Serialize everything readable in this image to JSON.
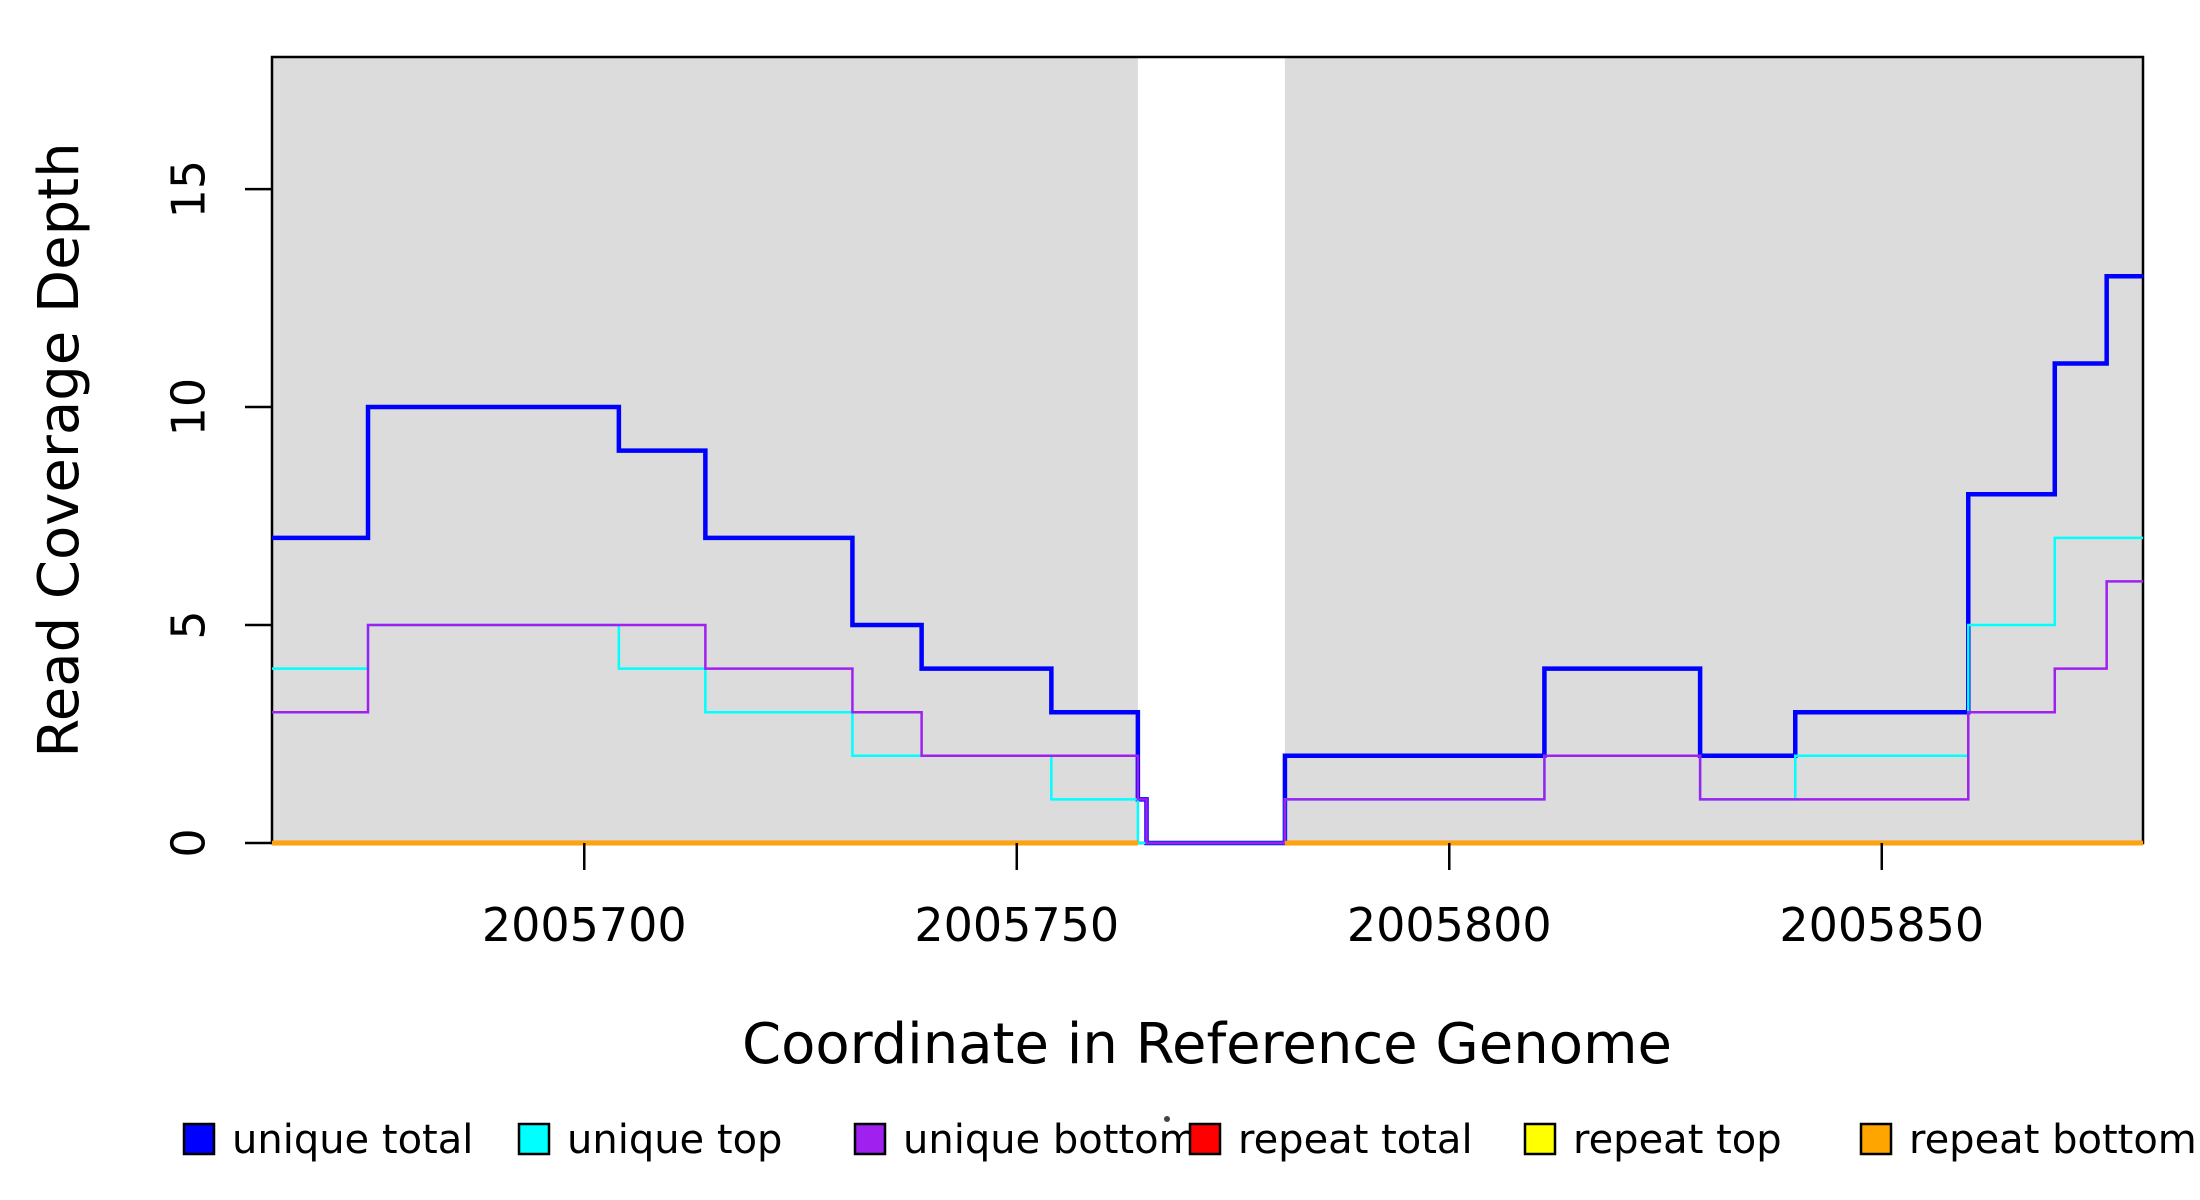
{
  "chart_data": {
    "type": "step",
    "title": "",
    "xlabel": "Coordinate in Reference Genome",
    "ylabel": "Read Coverage Depth",
    "x_domain": [
      2005663.9,
      2005880.2
    ],
    "y_domain": [
      0,
      18.03
    ],
    "x_ticks": [
      2005700,
      2005750,
      2005800,
      2005850
    ],
    "y_ticks": [
      0,
      5,
      10,
      15
    ],
    "grid": "off",
    "axis_color": "#000000",
    "shade_color": "#DCDCDC",
    "shaded_regions": [
      {
        "x1": 2005663.9,
        "x2": 2005764
      },
      {
        "x1": 2005781,
        "x2": 2005880.2
      }
    ],
    "gap_region": {
      "x1": 2005764,
      "x2": 2005781
    },
    "series": [
      {
        "name": "unique total",
        "color": "#0000FF",
        "line_width": 4.5,
        "segments": [
          {
            "points": [
              [
                2005663.9,
                7
              ],
              [
                2005675,
                10
              ],
              [
                2005704,
                9
              ],
              [
                2005714,
                7
              ],
              [
                2005731,
                5
              ],
              [
                2005739,
                4
              ],
              [
                2005754,
                3
              ],
              [
                2005764,
                1
              ],
              [
                2005765,
                0
              ],
              [
                2005781,
                2
              ],
              [
                2005811,
                4
              ],
              [
                2005829,
                2
              ],
              [
                2005840,
                3
              ],
              [
                2005860,
                8
              ],
              [
                2005870,
                11
              ],
              [
                2005876,
                13
              ]
            ],
            "end": 2005880.2
          }
        ]
      },
      {
        "name": "unique top",
        "color": "#00FFFF",
        "line_width": 2.5,
        "segments": [
          {
            "points": [
              [
                2005663.9,
                4
              ],
              [
                2005675,
                5
              ],
              [
                2005704,
                4
              ],
              [
                2005714,
                3
              ],
              [
                2005731,
                2
              ],
              [
                2005754,
                1
              ],
              [
                2005764,
                0
              ],
              [
                2005781,
                1
              ],
              [
                2005811,
                2
              ],
              [
                2005829,
                1
              ],
              [
                2005840,
                2
              ],
              [
                2005860,
                5
              ],
              [
                2005870,
                7
              ]
            ],
            "end": 2005880.2
          }
        ]
      },
      {
        "name": "unique bottom",
        "color": "#A020F0",
        "line_width": 2.5,
        "segments": [
          {
            "points": [
              [
                2005663.9,
                3
              ],
              [
                2005675,
                5
              ],
              [
                2005714,
                4
              ],
              [
                2005731,
                3
              ],
              [
                2005739,
                2
              ],
              [
                2005764,
                1
              ],
              [
                2005765,
                0
              ],
              [
                2005781,
                1
              ],
              [
                2005811,
                2
              ],
              [
                2005829,
                1
              ],
              [
                2005860,
                3
              ],
              [
                2005870,
                4
              ],
              [
                2005876,
                6
              ]
            ],
            "end": 2005880.2
          }
        ]
      },
      {
        "name": "repeat total",
        "color": "#FF0000",
        "line_width": 4.5,
        "segments": [
          {
            "points": [
              [
                2005663.9,
                0
              ]
            ],
            "end": 2005764
          },
          {
            "points": [
              [
                2005781,
                0
              ]
            ],
            "end": 2005880.2
          }
        ]
      },
      {
        "name": "repeat top",
        "color": "#FFFF00",
        "line_width": 2.5,
        "segments": [
          {
            "points": [
              [
                2005663.9,
                0
              ]
            ],
            "end": 2005764
          },
          {
            "points": [
              [
                2005781,
                0
              ]
            ],
            "end": 2005880.2
          }
        ]
      },
      {
        "name": "repeat bottom",
        "color": "#FFA500",
        "line_width": 4.5,
        "segments": [
          {
            "points": [
              [
                2005663.9,
                0
              ]
            ],
            "end": 2005764
          },
          {
            "points": [
              [
                2005781,
                0
              ]
            ],
            "end": 2005880.2
          }
        ]
      }
    ],
    "legend": [
      {
        "label": "unique total",
        "color": "#0000FF"
      },
      {
        "label": "unique top",
        "color": "#00FFFF"
      },
      {
        "label": "unique bottom",
        "color": "#A020F0"
      },
      {
        "label": "repeat total",
        "color": "#FF0000"
      },
      {
        "label": "repeat top",
        "color": "#FFFF00"
      },
      {
        "label": "repeat bottom",
        "color": "#FFA500"
      }
    ],
    "legend_position": "bottom",
    "artifact_dot": {
      "x": 1167,
      "y": 1119
    }
  }
}
